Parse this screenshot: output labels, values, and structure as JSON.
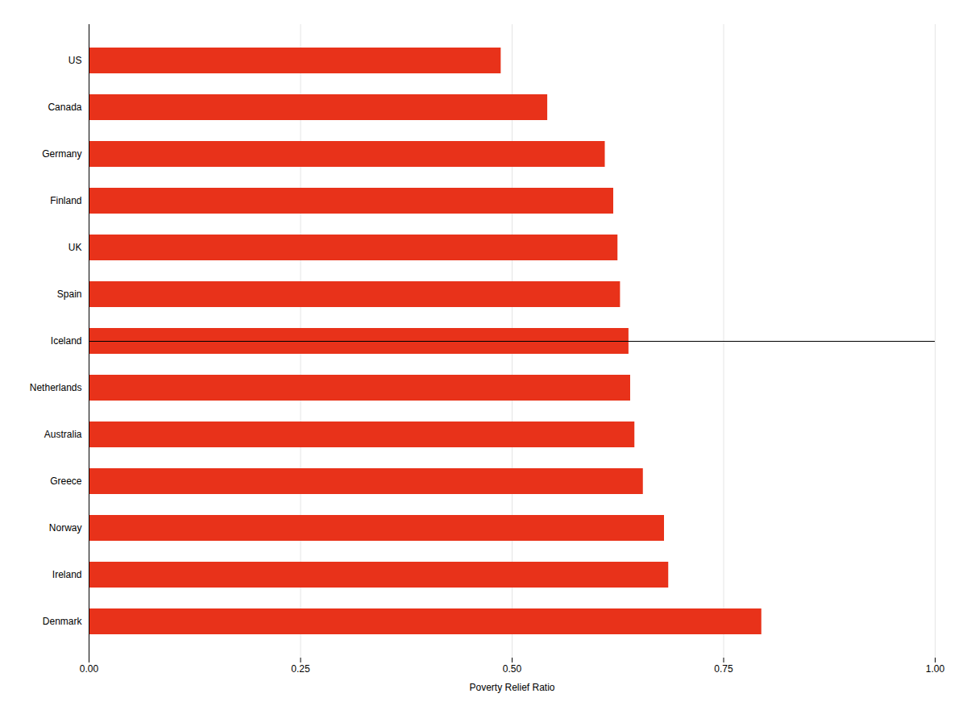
{
  "chart_data": {
    "type": "bar",
    "orientation": "horizontal",
    "categories": [
      "Denmark",
      "Ireland",
      "Norway",
      "Greece",
      "Australia",
      "Netherlands",
      "Iceland",
      "Spain",
      "UK",
      "Finland",
      "Germany",
      "Canada",
      "US"
    ],
    "values": [
      0.795,
      0.685,
      0.68,
      0.655,
      0.645,
      0.64,
      0.638,
      0.628,
      0.625,
      0.62,
      0.61,
      0.542,
      0.487
    ],
    "color": "#e8321a",
    "xlabel": "Poverty Relief Ratio",
    "xlim": [
      0.0,
      1.0
    ],
    "xticks": [
      {
        "value": 0.0,
        "label": "0.00"
      },
      {
        "value": 0.25,
        "label": "0.25"
      },
      {
        "value": 0.5,
        "label": "0.50"
      },
      {
        "value": 0.75,
        "label": "0.75"
      },
      {
        "value": 1.0,
        "label": "1.00"
      }
    ],
    "grid": true
  }
}
